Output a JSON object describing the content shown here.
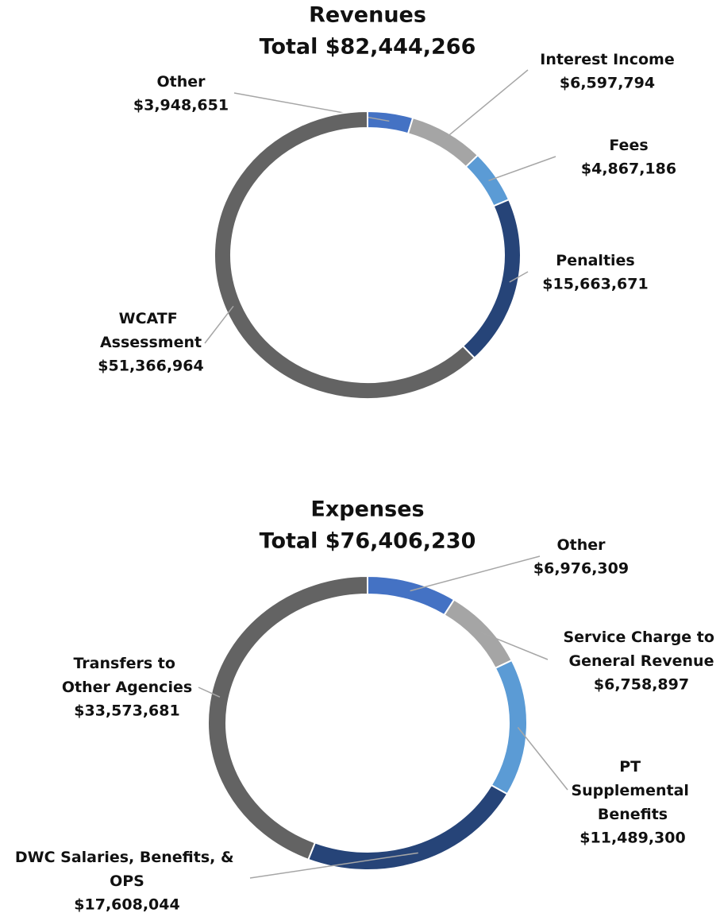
{
  "chart_data": [
    {
      "type": "donut",
      "title": "Revenues",
      "subtitle": "Total $82,444,266",
      "categories": [
        "Other",
        "Interest Income",
        "Fees",
        "Penalties",
        "WCATF Assessment"
      ],
      "values": [
        3948651,
        6597794,
        4867186,
        15663671,
        51366964
      ],
      "value_labels": [
        "$3,948,651",
        "$6,597,794",
        "$4,867,186",
        "$15,663,671",
        "$51,366,964"
      ],
      "colors": [
        "#4472c4",
        "#a5a5a5",
        "#5b9bd5",
        "#264478",
        "#636363"
      ]
    },
    {
      "type": "donut",
      "title": "Expenses",
      "subtitle": "Total $76,406,230",
      "categories": [
        "Other",
        "Service Charge to General Revenue",
        "PT Supplemental Benefits",
        "DWC Salaries, Benefits, & OPS",
        "Transfers to Other Agencies"
      ],
      "values": [
        6976309,
        6758897,
        11489300,
        17608044,
        33573681
      ],
      "value_labels": [
        "$6,976,309",
        "$6,758,897",
        "$11,489,300",
        "$17,608,044",
        "$33,573,681"
      ],
      "colors": [
        "#4472c4",
        "#a5a5a5",
        "#5b9bd5",
        "#264478",
        "#636363"
      ]
    }
  ]
}
